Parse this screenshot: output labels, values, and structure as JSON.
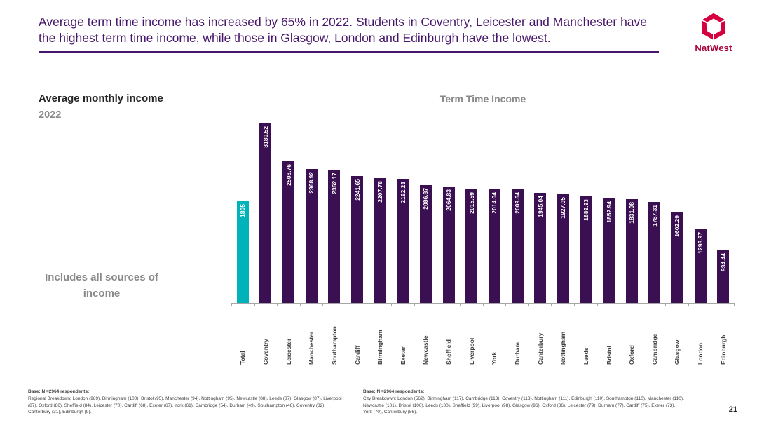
{
  "slide": {
    "title": "Average term time income has increased by 65% in 2022. Students in Coventry, Leicester and Manchester have the highest term time income, while those in Glasgow, London and Edinburgh have the lowest.",
    "page_number": "21"
  },
  "logo": {
    "brand": "NatWest",
    "logo_color": "#d5003f",
    "wordmark_color": "#a8003c"
  },
  "left_panel": {
    "heading": "Average monthly income",
    "year": "2022",
    "note": "Includes all sources of income"
  },
  "chart_data": {
    "type": "bar",
    "title": "Term Time Income",
    "categories": [
      "Total",
      "Coventry",
      "Leicester",
      "Manchester",
      "Southampton",
      "Cardiff",
      "Birmingham",
      "Exeter",
      "Newcastle",
      "Sheffield",
      "Liverpool",
      "York",
      "Durham",
      "Canterbury",
      "Nottingham",
      "Leeds",
      "Bristol",
      "Oxford",
      "Cambridge",
      "Glasgow",
      "London",
      "Edinburgh"
    ],
    "values": [
      1805,
      3180.52,
      2508.76,
      2368.92,
      2362.17,
      2241.65,
      2207.78,
      2192.23,
      2086.87,
      2064.83,
      2015.59,
      2014.04,
      2009.64,
      1945.04,
      1927.05,
      1889.93,
      1852.94,
      1831.08,
      1787.31,
      1602.29,
      1298.97,
      934.44
    ],
    "value_labels": [
      "1805",
      "3180.52",
      "2508.76",
      "2368.92",
      "2362.17",
      "2241.65",
      "2207.78",
      "2192.23",
      "2086.87",
      "2064.83",
      "2015.59",
      "2014.04",
      "2009.64",
      "1945.04",
      "1927.05",
      "1889.93",
      "1852.94",
      "1831.08",
      "1787.31",
      "1602.29",
      "1298.97",
      "934.44"
    ],
    "highlight_index": 0,
    "colors": {
      "bar": "#3b1053",
      "highlight": "#00b2b9"
    },
    "xlabel": "",
    "ylabel": "",
    "ylim": [
      0,
      3400
    ],
    "grid": false,
    "legend": "none"
  },
  "footnotes": {
    "left": {
      "base": "Base: N =2964 respondents;",
      "text": "Regional Breakdown: London (989), Birmingham (100), Bristol (95), Manchester (94), Nottingham (95), Newcastle (88), Leeds (87), Glasgow (87), Liverpool (87), Oxford (86), Sheffield (84), Leicester (70), Cardiff (68), Exeter (67), York (61), Cambridge (54), Durham (49), Southampton (48), Coventry (32), Canterbury (31), Edinburgh (9)."
    },
    "right": {
      "base": "Base: N =2964 respondents;",
      "text": "City Breakdown: London (562), Birmingham (117), Cambridge (113), Coventry (113), Nottingham (111), Edinburgh (110), Southampton (110), Manchester (110), Newcastle (101), Bristol (100), Leeds (100), Sheffield (99), Liverpool (98), Glasgow (96), Oxford (86), Leicester (79), Durham (77), Cardiff (75), Exeter (73), York (70), Canterbury (56)."
    }
  }
}
